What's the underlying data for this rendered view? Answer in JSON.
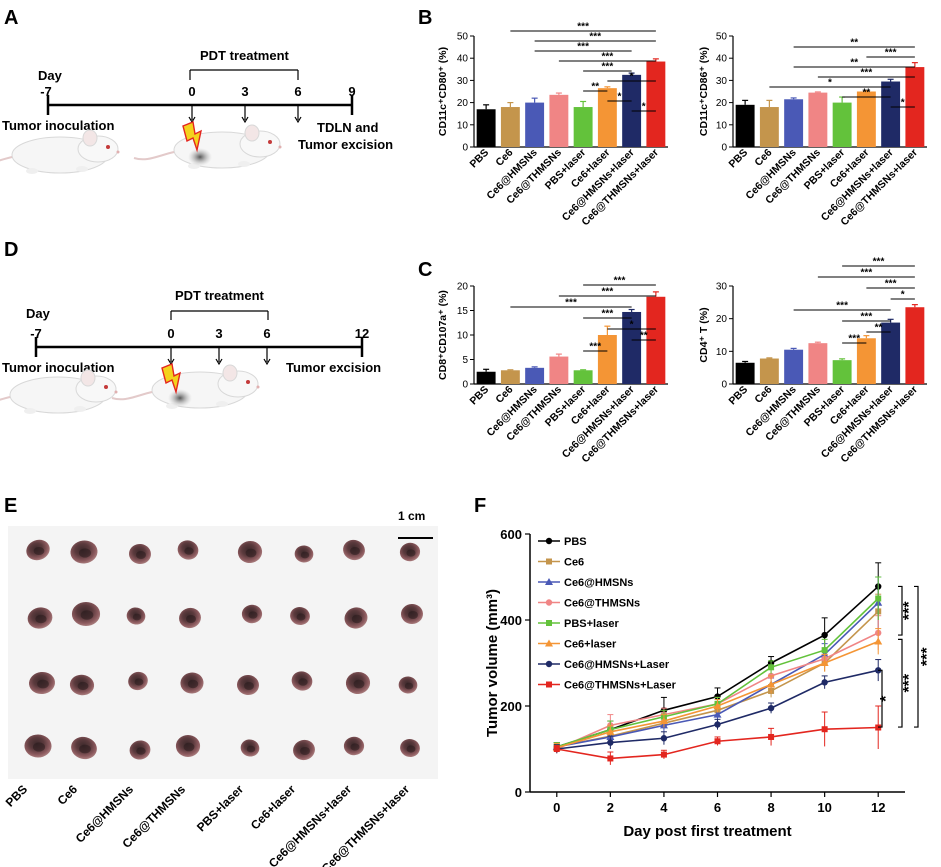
{
  "panel_labels": {
    "A": "A",
    "B": "B",
    "C": "C",
    "D": "D",
    "E": "E",
    "F": "F"
  },
  "timeline_a": {
    "day_label": "Day",
    "treatment_label": "PDT treatment",
    "ticks": [
      "-7",
      "0",
      "3",
      "6",
      "9"
    ],
    "left_caption": "Tumor inoculation",
    "right_caption_1": "TDLN and",
    "right_caption_2": "Tumor excision"
  },
  "timeline_d": {
    "day_label": "Day",
    "treatment_label": "PDT treatment",
    "ticks": [
      "-7",
      "0",
      "3",
      "6",
      "12"
    ],
    "left_caption": "Tumor inoculation",
    "right_caption": "Tumor excision"
  },
  "photo": {
    "scale_label": "1 cm",
    "groups": [
      "PBS",
      "Ce6",
      "Ce6@HMSNs",
      "Ce6@THMSNs",
      "PBS+laser",
      "Ce6+laser",
      "Ce6@HMSNs+laser",
      "Ce6@THMSNs+laser"
    ]
  },
  "colors": {
    "PBS": "#000000",
    "Ce6": "#c4954c",
    "Ce6@HMSNs": "#4a59b6",
    "Ce6@THMSNs": "#f08585",
    "PBS+laser": "#63c23b",
    "Ce6+laser": "#f49535",
    "Ce6@HMSNs+laser": "#1f2a66",
    "Ce6@THMSNs+laser": "#e3261f"
  },
  "chart_data": [
    {
      "id": "b1",
      "type": "bar",
      "ylabel": "CD11c⁺CD80⁺ (%)",
      "ylim": [
        0,
        50
      ],
      "yticks": [
        "0",
        "10",
        "20",
        "30",
        "40",
        "50"
      ],
      "categories": [
        "PBS",
        "Ce6",
        "Ce6@HMSNs",
        "Ce6@THMSNs",
        "PBS+laser",
        "Ce6+laser",
        "Ce6@HMSNs+laser",
        "Ce6@THMSNs+laser"
      ],
      "values": [
        17,
        18,
        20,
        23.5,
        18,
        26.5,
        32.5,
        38.5
      ],
      "errors": [
        2,
        2,
        2,
        0.8,
        2.5,
        0.6,
        0.8,
        1.2
      ],
      "sig": [
        {
          "a": 6,
          "b": 7,
          "label": "*"
        },
        {
          "a": 5,
          "b": 6,
          "label": "*"
        },
        {
          "a": 4,
          "b": 5,
          "label": "**"
        },
        {
          "a": 5,
          "b": 7,
          "label": "*"
        },
        {
          "a": 4,
          "b": 6,
          "label": "***"
        },
        {
          "a": 3,
          "b": 7,
          "label": "***"
        },
        {
          "a": 2,
          "b": 6,
          "label": "***"
        },
        {
          "a": 2,
          "b": 7,
          "label": "***"
        },
        {
          "a": 1,
          "b": 7,
          "label": "***"
        }
      ]
    },
    {
      "id": "b2",
      "type": "bar",
      "ylabel": "CD11c⁺CD86⁺ (%)",
      "ylim": [
        0,
        50
      ],
      "yticks": [
        "0",
        "10",
        "20",
        "30",
        "40",
        "50"
      ],
      "categories": [
        "PBS",
        "Ce6",
        "Ce6@HMSNs",
        "Ce6@THMSNs",
        "PBS+laser",
        "Ce6+laser",
        "Ce6@HMSNs+laser",
        "Ce6@THMSNs+laser"
      ],
      "values": [
        19,
        18,
        21.5,
        24.5,
        20,
        25,
        29.5,
        36
      ],
      "errors": [
        2,
        3,
        0.6,
        0.3,
        2.5,
        0.3,
        1,
        2
      ],
      "sig": [
        {
          "a": 6,
          "b": 7,
          "label": "*"
        },
        {
          "a": 4,
          "b": 6,
          "label": "**"
        },
        {
          "a": 1,
          "b": 6,
          "label": "*"
        },
        {
          "a": 3,
          "b": 7,
          "label": "***"
        },
        {
          "a": 2,
          "b": 7,
          "label": "**"
        },
        {
          "a": 5,
          "b": 7,
          "label": "***"
        },
        {
          "a": 2,
          "b": 7,
          "label": "**"
        }
      ]
    },
    {
      "id": "c1",
      "type": "bar",
      "ylabel": "CD8⁺CD107a⁺ (%)",
      "ylim": [
        0,
        20
      ],
      "yticks": [
        "0",
        "5",
        "10",
        "15",
        "20"
      ],
      "categories": [
        "PBS",
        "Ce6",
        "Ce6@HMSNs",
        "Ce6@THMSNs",
        "PBS+laser",
        "Ce6+laser",
        "Ce6@HMSNs+laser",
        "Ce6@THMSNs+laser"
      ],
      "values": [
        2.5,
        2.8,
        3.3,
        5.6,
        2.8,
        10,
        14.7,
        17.8
      ],
      "errors": [
        0.5,
        0.1,
        0.2,
        0.5,
        0.1,
        1.8,
        0.5,
        1
      ],
      "sig": [
        {
          "a": 4,
          "b": 5,
          "label": "***"
        },
        {
          "a": 6,
          "b": 7,
          "label": "**"
        },
        {
          "a": 5,
          "b": 7,
          "label": "*"
        },
        {
          "a": 4,
          "b": 6,
          "label": "***"
        },
        {
          "a": 1,
          "b": 6,
          "label": "***"
        },
        {
          "a": 3,
          "b": 7,
          "label": "***"
        },
        {
          "a": 4,
          "b": 7,
          "label": "***"
        }
      ]
    },
    {
      "id": "c2",
      "type": "bar",
      "ylabel": "CD4⁺ T (%)",
      "ylim": [
        0,
        30
      ],
      "yticks": [
        "0",
        "10",
        "20",
        "30"
      ],
      "categories": [
        "PBS",
        "Ce6",
        "Ce6@HMSNs",
        "Ce6@THMSNs",
        "PBS+laser",
        "Ce6+laser",
        "Ce6@HMSNs+laser",
        "Ce6@THMSNs+laser"
      ],
      "values": [
        6.5,
        7.8,
        10.5,
        12.5,
        7.3,
        14,
        18.8,
        23.5
      ],
      "errors": [
        0.4,
        0.2,
        0.4,
        0.3,
        0.4,
        0.8,
        1,
        0.8
      ],
      "sig": [
        {
          "a": 4,
          "b": 5,
          "label": "***"
        },
        {
          "a": 5,
          "b": 6,
          "label": "**"
        },
        {
          "a": 4,
          "b": 6,
          "label": "***"
        },
        {
          "a": 2,
          "b": 6,
          "label": "***"
        },
        {
          "a": 6,
          "b": 7,
          "label": "*"
        },
        {
          "a": 5,
          "b": 7,
          "label": "***"
        },
        {
          "a": 3,
          "b": 7,
          "label": "***"
        },
        {
          "a": 4,
          "b": 7,
          "label": "***"
        }
      ]
    },
    {
      "id": "f",
      "type": "line",
      "title": "",
      "xlabel": "Day post first treatment",
      "ylabel": "Tumor volume (mm³)",
      "x": [
        0,
        2,
        4,
        6,
        8,
        10,
        12
      ],
      "xlim": [
        -1,
        13
      ],
      "ylim": [
        0,
        600
      ],
      "xticks": [
        "0",
        "2",
        "4",
        "6",
        "8",
        "10",
        "12"
      ],
      "yticks": [
        "0",
        "200",
        "400",
        "600"
      ],
      "series": [
        {
          "name": "PBS",
          "values": [
            105,
            145,
            190,
            222,
            300,
            365,
            478
          ],
          "errors": [
            10,
            20,
            30,
            20,
            15,
            40,
            55
          ]
        },
        {
          "name": "Ce6",
          "values": [
            105,
            130,
            160,
            190,
            235,
            300,
            420
          ],
          "errors": [
            10,
            15,
            15,
            15,
            15,
            20,
            40
          ]
        },
        {
          "name": "Ce6@HMSNs",
          "values": [
            105,
            128,
            155,
            180,
            250,
            320,
            440
          ],
          "errors": [
            10,
            15,
            15,
            15,
            15,
            25,
            60
          ]
        },
        {
          "name": "Ce6@THMSNs",
          "values": [
            100,
            155,
            180,
            205,
            270,
            310,
            370
          ],
          "errors": [
            10,
            25,
            15,
            15,
            15,
            20,
            40
          ]
        },
        {
          "name": "PBS+laser",
          "values": [
            105,
            145,
            175,
            205,
            290,
            330,
            450
          ],
          "errors": [
            10,
            20,
            15,
            15,
            15,
            25,
            50
          ]
        },
        {
          "name": "Ce6+laser",
          "values": [
            103,
            140,
            165,
            200,
            250,
            300,
            350
          ],
          "errors": [
            10,
            15,
            15,
            15,
            20,
            20,
            30
          ]
        },
        {
          "name": "Ce6@HMSNs+Laser",
          "values": [
            100,
            115,
            125,
            157,
            195,
            255,
            283
          ],
          "errors": [
            10,
            15,
            15,
            12,
            12,
            15,
            25
          ]
        },
        {
          "name": "Ce6@THMSNs+Laser",
          "values": [
            100,
            78,
            87,
            118,
            128,
            146,
            150
          ],
          "errors": [
            8,
            15,
            10,
            10,
            20,
            40,
            50
          ]
        }
      ],
      "sig_labels": [
        "***",
        "***",
        "*",
        "***"
      ]
    }
  ]
}
